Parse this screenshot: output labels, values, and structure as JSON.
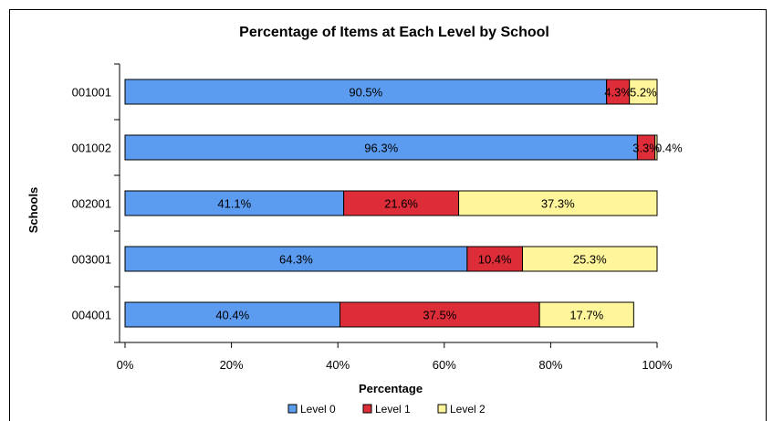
{
  "chart_data": {
    "type": "bar",
    "orientation": "horizontal",
    "stacked": "percent",
    "title": "Percentage of Items at Each Level by School",
    "xlabel": "Percentage",
    "ylabel": "Schools",
    "xlim": [
      0,
      100
    ],
    "x_ticks": [
      "0%",
      "20%",
      "40%",
      "60%",
      "80%",
      "100%"
    ],
    "categories": [
      "001001",
      "001002",
      "002001",
      "003001",
      "004001"
    ],
    "series": [
      {
        "name": "Level 0",
        "color": "#5B9BF0",
        "values": [
          90.5,
          96.3,
          41.1,
          64.3,
          40.4
        ],
        "labels": [
          "90.5%",
          "96.3%",
          "41.1%",
          "64.3%",
          "40.4%"
        ]
      },
      {
        "name": "Level 1",
        "color": "#DC2D38",
        "values": [
          4.3,
          3.3,
          21.6,
          10.4,
          37.5
        ],
        "labels": [
          "4.3%",
          "3.3%",
          "21.6%",
          "10.4%",
          "37.5%"
        ]
      },
      {
        "name": "Level 2",
        "color": "#FFF59A",
        "values": [
          5.2,
          0.4,
          37.3,
          25.3,
          17.7
        ],
        "labels": [
          "5.2%",
          "0.4%",
          "37.3%",
          "25.3%",
          "17.7%"
        ]
      }
    ],
    "grid": false,
    "legend_position": "bottom"
  }
}
